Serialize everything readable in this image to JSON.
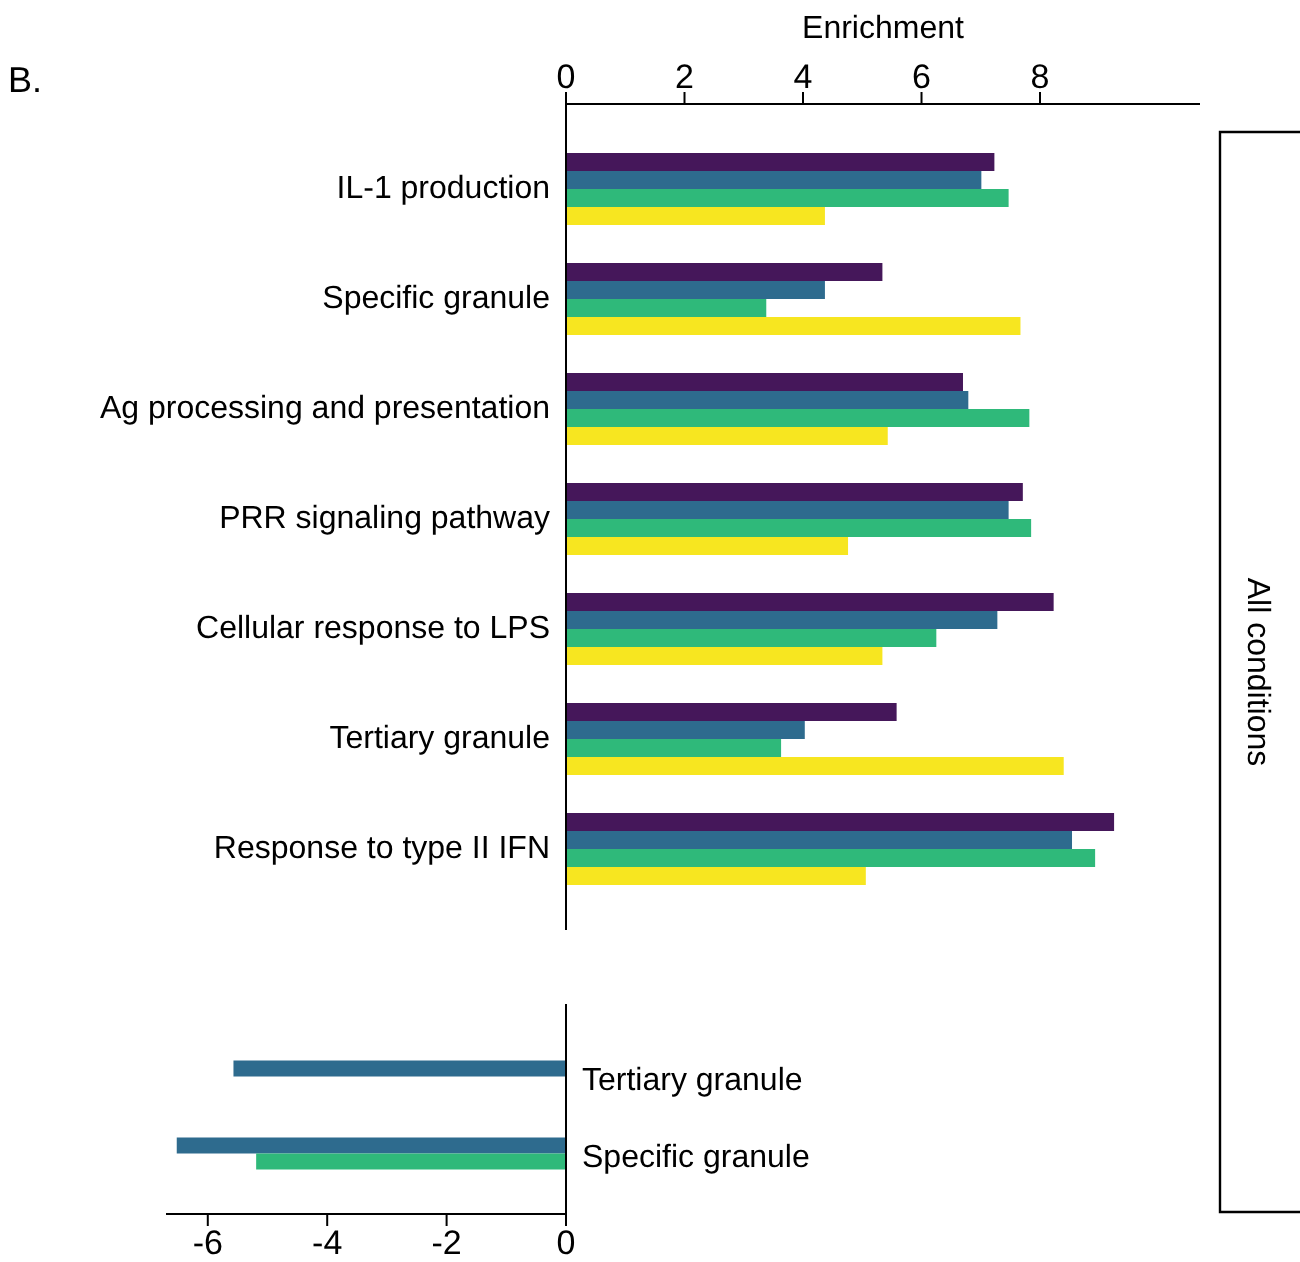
{
  "chart_data": [
    {
      "type": "bar",
      "orientation": "horizontal",
      "title": "B.",
      "xlabel": "Enrichment",
      "annotations": [
        "All conditions"
      ],
      "categories": [
        "IL-1 production",
        "Specific granule",
        "Ag processing and presentation",
        "PRR signaling pathway",
        "Cellular response to LPS",
        "Tertiary granule",
        "Response to type II IFN"
      ],
      "series": [
        {
          "color": "#45175a",
          "values": [
            7.23,
            5.34,
            6.7,
            7.71,
            8.23,
            5.58,
            9.25
          ]
        },
        {
          "color": "#2e6b8e",
          "values": [
            7.01,
            4.37,
            6.79,
            7.47,
            7.28,
            4.03,
            8.54
          ]
        },
        {
          "color": "#2fb97a",
          "values": [
            7.47,
            3.38,
            7.82,
            7.85,
            6.25,
            3.63,
            8.93
          ]
        },
        {
          "color": "#f7e620",
          "values": [
            4.37,
            7.67,
            5.43,
            4.76,
            5.34,
            8.4,
            5.06
          ]
        }
      ],
      "xlim": [
        0,
        10.7
      ],
      "xticks": [
        0,
        2,
        4,
        6,
        8
      ]
    },
    {
      "type": "bar",
      "orientation": "horizontal",
      "categories": [
        "Tertiary granule",
        "Specific granule"
      ],
      "series": [
        {
          "color": "#45175a",
          "values": [
            null,
            null
          ]
        },
        {
          "color": "#2e6b8e",
          "values": [
            -5.57,
            -6.52
          ]
        },
        {
          "color": "#2fb97a",
          "values": [
            null,
            -5.19
          ]
        },
        {
          "color": "#f7e620",
          "values": [
            null,
            null
          ]
        }
      ],
      "xlim": [
        -6.7,
        0
      ],
      "xticks": [
        -6,
        -4,
        -2,
        0
      ]
    }
  ]
}
